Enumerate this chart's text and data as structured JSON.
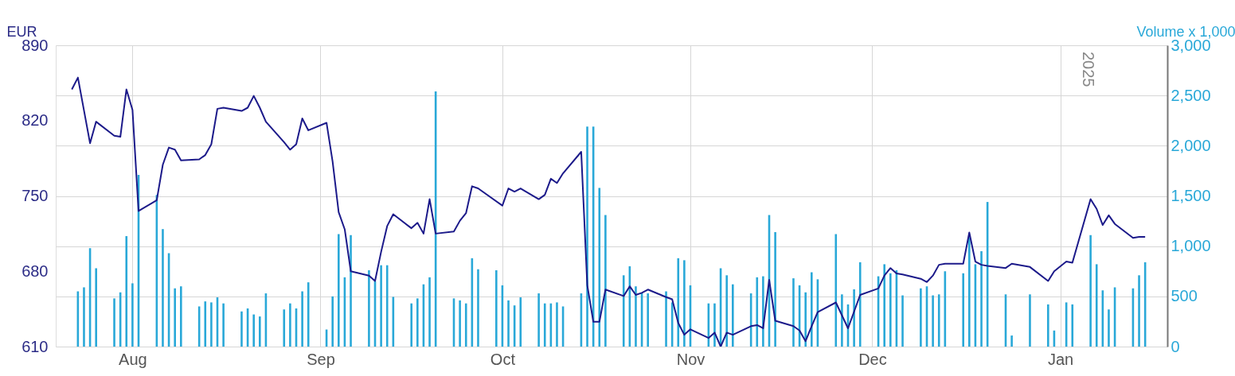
{
  "chart_data": {
    "type": "line",
    "ylabel": "EUR",
    "y2label": "Volume x 1,000",
    "xlim": [
      "2024-07-20",
      "2025-01-18"
    ],
    "xticks": [
      {
        "value": "2024-08-01",
        "label": "Aug"
      },
      {
        "value": "2024-09-01",
        "label": "Sep"
      },
      {
        "value": "2024-10-01",
        "label": "Oct"
      },
      {
        "value": "2024-11-01",
        "label": "Nov"
      },
      {
        "value": "2024-12-01",
        "label": "Dec"
      },
      {
        "value": "2025-01-01",
        "label": "Jan"
      }
    ],
    "ylim": [
      610,
      890
    ],
    "yticks": [
      610,
      680,
      750,
      820,
      890
    ],
    "y2lim": [
      0,
      3000
    ],
    "y2ticks": [
      0,
      500,
      {
        "value": 1000,
        "label": "1,000"
      },
      {
        "value": 1500,
        "label": "1,500"
      },
      {
        "value": 2000,
        "label": "2,000"
      },
      {
        "value": 2500,
        "label": "2,500"
      },
      {
        "value": 3000,
        "label": "3,000"
      }
    ],
    "grid": true,
    "annotations": [
      "2025"
    ],
    "series": [
      {
        "type": "bar",
        "axis": "y2",
        "color": "#29a8d8",
        "x": [
          "2024-07-23",
          "2024-07-24",
          "2024-07-25",
          "2024-07-26",
          "2024-07-29",
          "2024-07-30",
          "2024-07-31",
          "2024-08-01",
          "2024-08-02",
          "2024-08-05",
          "2024-08-06",
          "2024-08-07",
          "2024-08-08",
          "2024-08-09",
          "2024-08-12",
          "2024-08-13",
          "2024-08-14",
          "2024-08-15",
          "2024-08-16",
          "2024-08-19",
          "2024-08-20",
          "2024-08-21",
          "2024-08-22",
          "2024-08-23",
          "2024-08-26",
          "2024-08-27",
          "2024-08-28",
          "2024-08-29",
          "2024-08-30",
          "2024-09-02",
          "2024-09-03",
          "2024-09-04",
          "2024-09-05",
          "2024-09-06",
          "2024-09-09",
          "2024-09-10",
          "2024-09-11",
          "2024-09-12",
          "2024-09-13",
          "2024-09-16",
          "2024-09-17",
          "2024-09-18",
          "2024-09-19",
          "2024-09-20",
          "2024-09-23",
          "2024-09-24",
          "2024-09-25",
          "2024-09-26",
          "2024-09-27",
          "2024-09-30",
          "2024-10-01",
          "2024-10-02",
          "2024-10-03",
          "2024-10-04",
          "2024-10-07",
          "2024-10-08",
          "2024-10-09",
          "2024-10-10",
          "2024-10-11",
          "2024-10-14",
          "2024-10-15",
          "2024-10-16",
          "2024-10-17",
          "2024-10-18",
          "2024-10-21",
          "2024-10-22",
          "2024-10-23",
          "2024-10-24",
          "2024-10-25",
          "2024-10-28",
          "2024-10-29",
          "2024-10-30",
          "2024-10-31",
          "2024-11-01",
          "2024-11-04",
          "2024-11-05",
          "2024-11-06",
          "2024-11-07",
          "2024-11-08",
          "2024-11-11",
          "2024-11-12",
          "2024-11-13",
          "2024-11-14",
          "2024-11-15",
          "2024-11-18",
          "2024-11-19",
          "2024-11-20",
          "2024-11-21",
          "2024-11-22",
          "2024-11-25",
          "2024-11-26",
          "2024-11-27",
          "2024-11-28",
          "2024-11-29",
          "2024-12-02",
          "2024-12-03",
          "2024-12-04",
          "2024-12-05",
          "2024-12-06",
          "2024-12-09",
          "2024-12-10",
          "2024-12-11",
          "2024-12-12",
          "2024-12-13",
          "2024-12-16",
          "2024-12-17",
          "2024-12-18",
          "2024-12-19",
          "2024-12-20",
          "2024-12-23",
          "2024-12-24",
          "2024-12-27",
          "2024-12-30",
          "2024-12-31",
          "2025-01-02",
          "2025-01-03",
          "2025-01-06",
          "2025-01-07",
          "2025-01-08",
          "2025-01-09",
          "2025-01-10",
          "2025-01-13",
          "2025-01-14",
          "2025-01-15"
        ],
        "values": [
          550,
          590,
          980,
          780,
          480,
          540,
          1100,
          630,
          1710,
          1510,
          1170,
          930,
          580,
          600,
          400,
          450,
          440,
          490,
          430,
          350,
          380,
          320,
          300,
          530,
          370,
          430,
          380,
          550,
          640,
          170,
          500,
          1120,
          690,
          1110,
          760,
          650,
          810,
          810,
          495,
          430,
          480,
          620,
          690,
          2540,
          480,
          460,
          430,
          880,
          770,
          760,
          610,
          460,
          410,
          490,
          530,
          430,
          430,
          440,
          400,
          530,
          2190,
          2190,
          1580,
          1310,
          710,
          800,
          600,
          530,
          530,
          550,
          440,
          880,
          860,
          610,
          430,
          430,
          780,
          710,
          620,
          530,
          690,
          700,
          1310,
          1140,
          680,
          610,
          540,
          740,
          670,
          1120,
          520,
          420,
          570,
          840,
          700,
          820,
          730,
          760,
          510,
          580,
          600,
          510,
          520,
          750,
          730,
          1090,
          820,
          950,
          1440,
          520,
          110,
          520,
          420,
          160,
          440,
          420,
          1110,
          820,
          560,
          370,
          590,
          580,
          710,
          840
        ]
      },
      {
        "color": "#1c1a8a",
        "x": [
          "2024-07-22",
          "2024-07-23",
          "2024-07-25",
          "2024-07-26",
          "2024-07-29",
          "2024-07-30",
          "2024-07-31",
          "2024-08-01",
          "2024-08-02",
          "2024-08-05",
          "2024-08-06",
          "2024-08-07",
          "2024-08-08",
          "2024-08-09",
          "2024-08-12",
          "2024-08-13",
          "2024-08-14",
          "2024-08-15",
          "2024-08-16",
          "2024-08-19",
          "2024-08-20",
          "2024-08-21",
          "2024-08-22",
          "2024-08-23",
          "2024-08-26",
          "2024-08-27",
          "2024-08-28",
          "2024-08-29",
          "2024-08-30",
          "2024-09-02",
          "2024-09-03",
          "2024-09-04",
          "2024-09-05",
          "2024-09-06",
          "2024-09-09",
          "2024-09-10",
          "2024-09-11",
          "2024-09-12",
          "2024-09-13",
          "2024-09-16",
          "2024-09-17",
          "2024-09-18",
          "2024-09-19",
          "2024-09-20",
          "2024-09-23",
          "2024-09-24",
          "2024-09-25",
          "2024-09-26",
          "2024-09-27",
          "2024-10-01",
          "2024-10-02",
          "2024-10-03",
          "2024-10-04",
          "2024-10-07",
          "2024-10-08",
          "2024-10-09",
          "2024-10-10",
          "2024-10-11",
          "2024-10-14",
          "2024-10-15",
          "2024-10-16",
          "2024-10-17",
          "2024-10-18",
          "2024-10-21",
          "2024-10-22",
          "2024-10-23",
          "2024-10-24",
          "2024-10-25",
          "2024-10-28",
          "2024-10-29",
          "2024-10-30",
          "2024-10-31",
          "2024-11-01",
          "2024-11-04",
          "2024-11-05",
          "2024-11-06",
          "2024-11-07",
          "2024-11-08",
          "2024-11-11",
          "2024-11-12",
          "2024-11-13",
          "2024-11-14",
          "2024-11-15",
          "2024-11-18",
          "2024-11-19",
          "2024-11-20",
          "2024-11-21",
          "2024-11-22",
          "2024-11-25",
          "2024-11-27",
          "2024-11-29",
          "2024-12-02",
          "2024-12-03",
          "2024-12-04",
          "2024-12-05",
          "2024-12-06",
          "2024-12-09",
          "2024-12-10",
          "2024-12-11",
          "2024-12-12",
          "2024-12-13",
          "2024-12-16",
          "2024-12-17",
          "2024-12-18",
          "2024-12-19",
          "2024-12-20",
          "2024-12-23",
          "2024-12-24",
          "2024-12-27",
          "2024-12-30",
          "2024-12-31",
          "2025-01-02",
          "2025-01-03",
          "2025-01-06",
          "2025-01-07",
          "2025-01-08",
          "2025-01-09",
          "2025-01-10",
          "2025-01-13",
          "2025-01-14",
          "2025-01-15"
        ],
        "values": [
          849,
          860,
          799,
          819,
          806,
          805,
          849,
          830,
          736,
          746,
          779,
          795,
          793,
          783,
          784,
          788,
          798,
          831,
          832,
          829,
          832,
          843,
          832,
          819,
          800,
          793,
          798,
          822,
          811,
          818,
          782,
          735,
          719,
          680,
          676,
          671,
          698,
          722,
          733,
          720,
          725,
          715,
          747,
          715,
          717,
          727,
          734,
          759,
          757,
          741,
          757,
          754,
          757,
          747,
          751,
          766,
          762,
          771,
          791,
          667,
          633,
          633,
          663,
          657,
          666,
          658,
          660,
          663,
          656,
          654,
          632,
          621,
          626,
          618,
          623,
          610,
          623,
          621,
          629,
          630,
          627,
          672,
          634,
          629,
          625,
          615,
          629,
          642,
          651,
          627,
          658,
          664,
          676,
          683,
          678,
          677,
          673,
          670,
          676,
          686,
          687,
          687,
          716,
          689,
          686,
          685,
          683,
          687,
          684,
          671,
          680,
          689,
          688,
          747,
          738,
          723,
          732,
          724,
          711,
          712,
          712
        ]
      }
    ]
  }
}
